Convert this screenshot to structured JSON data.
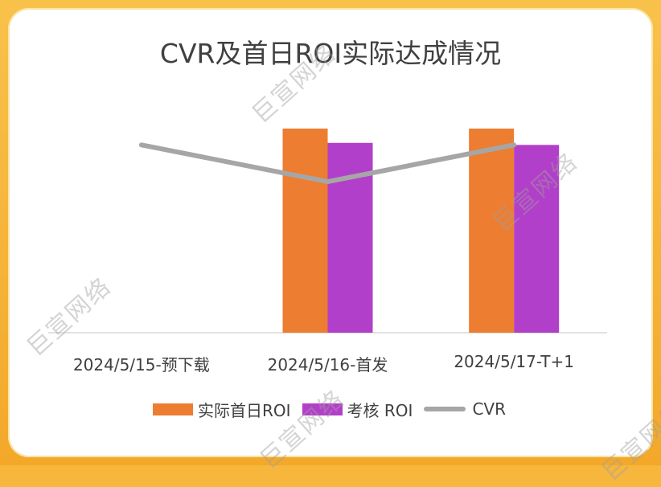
{
  "chart_data": {
    "type": "bar",
    "title": "CVR及首日ROI实际达成情况",
    "categories": [
      "2024/5/15-预下载",
      "2024/5/16-首发",
      "2024/5/17-T+1"
    ],
    "series": [
      {
        "name": "实际首日ROI",
        "type": "bar",
        "color": "#ed7d31",
        "values": [
          null,
          1.0,
          1.0
        ]
      },
      {
        "name": "考核 ROI",
        "type": "bar",
        "color": "#b23fc9",
        "values": [
          null,
          0.93,
          0.92
        ]
      },
      {
        "name": "CVR",
        "type": "line",
        "color": "#a6a6a6",
        "values": [
          0.92,
          0.74,
          0.92
        ]
      }
    ],
    "ylim": [
      0,
      1.0
    ],
    "grid": false,
    "legend_position": "bottom",
    "xlabel": "",
    "ylabel": ""
  },
  "watermark": "巨宣网络"
}
